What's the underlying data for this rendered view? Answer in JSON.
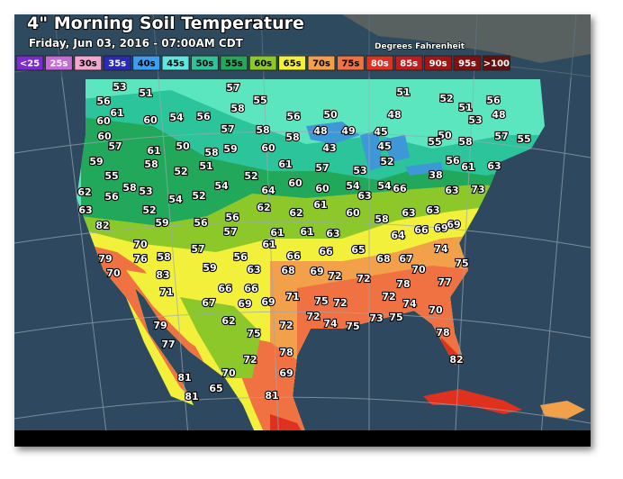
{
  "header": {
    "title": "4\" Morning Soil Temperature",
    "subtitle": "Friday, Jun 03, 2016 - 07:00AM CDT",
    "units": "Degrees Fahrenheit"
  },
  "legend": [
    {
      "label": "<25",
      "color": "#7b2bd0"
    },
    {
      "label": "25s",
      "color": "#c86ad8"
    },
    {
      "label": "30s",
      "color": "#f4a6d0"
    },
    {
      "label": "35s",
      "color": "#2a2ab8"
    },
    {
      "label": "40s",
      "color": "#3c9ef0"
    },
    {
      "label": "45s",
      "color": "#5fe6e0"
    },
    {
      "label": "50s",
      "color": "#2cc49a"
    },
    {
      "label": "55s",
      "color": "#22a85a"
    },
    {
      "label": "60s",
      "color": "#8cc82a"
    },
    {
      "label": "65s",
      "color": "#f2f03a"
    },
    {
      "label": "70s",
      "color": "#f2a04a"
    },
    {
      "label": "75s",
      "color": "#f07242"
    },
    {
      "label": "80s",
      "color": "#e0301e"
    },
    {
      "label": "85s",
      "color": "#c01e1e"
    },
    {
      "label": "90s",
      "color": "#a01616"
    },
    {
      "label": "95s",
      "color": "#821010"
    },
    {
      "label": ">100",
      "color": "#641010"
    }
  ],
  "readings": [
    53,
    51,
    57,
    55,
    51,
    52,
    51,
    56,
    56,
    61,
    60,
    54,
    56,
    58,
    56,
    50,
    48,
    53,
    48,
    60,
    60,
    57,
    57,
    58,
    58,
    48,
    49,
    45,
    50,
    55,
    58,
    57,
    55,
    61,
    50,
    58,
    59,
    60,
    43,
    45,
    56,
    63,
    61,
    59,
    58,
    51,
    52,
    61,
    57,
    53,
    52,
    55,
    52,
    38,
    62,
    56,
    58,
    53,
    54,
    52,
    54,
    64,
    60,
    60,
    54,
    63,
    54,
    66,
    63,
    73,
    63,
    52,
    62,
    62,
    61,
    60,
    58,
    63,
    63,
    69,
    82,
    59,
    56,
    56,
    57,
    61,
    61,
    63,
    64,
    66,
    69,
    70,
    57,
    61,
    66,
    66,
    65,
    74,
    79,
    76,
    58,
    56,
    68,
    67,
    75,
    70,
    83,
    59,
    63,
    68,
    69,
    72,
    72,
    70,
    71,
    66,
    66,
    71,
    75,
    78,
    77,
    67,
    69,
    69,
    72,
    72,
    74,
    70,
    79,
    62,
    72,
    72,
    74,
    75,
    73,
    75,
    77,
    75,
    78,
    78,
    72,
    69,
    82,
    81,
    70,
    81,
    65,
    81
  ]
}
